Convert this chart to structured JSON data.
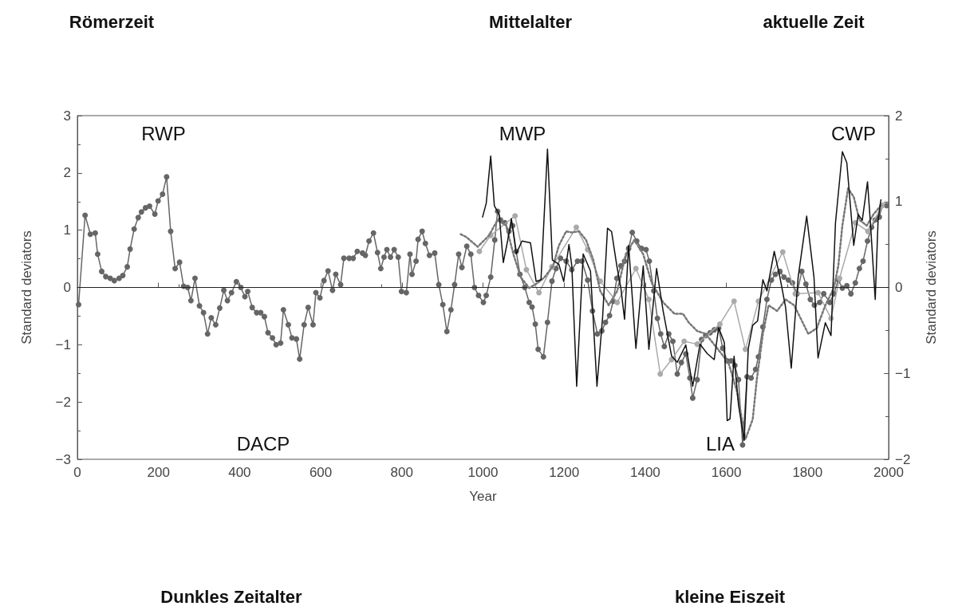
{
  "chart_data": {
    "type": "line",
    "xlabel": "Year",
    "ylabel": "Standard deviators",
    "y2label": "Standard deviators",
    "xlim": [
      0,
      2000
    ],
    "xticks": [
      0,
      200,
      400,
      600,
      800,
      1000,
      1200,
      1400,
      1600,
      1800,
      2000
    ],
    "ylim": [
      -3,
      3
    ],
    "yticks": [
      -3,
      -2,
      -1,
      0,
      1,
      2,
      3
    ],
    "y2lim": [
      -2,
      2
    ],
    "y2ticks": [
      -2,
      -1,
      0,
      1,
      2
    ],
    "grid": false,
    "ref_lines": [
      {
        "axis": "y",
        "value": 0,
        "color": "#222222"
      }
    ],
    "annotations": [
      "Römerzeit",
      "Mittelalter",
      "aktuelle Zeit",
      "Dunkles Zeitalter",
      "kleine Eiszeit",
      "RWP",
      "MWP",
      "CWP",
      "DACP",
      "LIA"
    ],
    "series": [
      {
        "color": "#666666",
        "marker": "circle",
        "line_style": "solid",
        "x": [
          3,
          19,
          32,
          44,
          50,
          60,
          70,
          81,
          91,
          103,
          112,
          123,
          130,
          140,
          150,
          158,
          168,
          178,
          191,
          199,
          210,
          220,
          230,
          241,
          252,
          262,
          272,
          280,
          290,
          301,
          311,
          321,
          330,
          341,
          351,
          361,
          370,
          380,
          392,
          403,
          413,
          420,
          431,
          442,
          452,
          461,
          470,
          481,
          490,
          501,
          508,
          520,
          529,
          540,
          548,
          559,
          569,
          581,
          588,
          598,
          608,
          618,
          629,
          637,
          649,
          657,
          670,
          680,
          690,
          703,
          710,
          719,
          730,
          740,
          748,
          756,
          763,
          772,
          781,
          791,
          799,
          811,
          820,
          825,
          835,
          840,
          850,
          858,
          868,
          881,
          891,
          901,
          911,
          921,
          930,
          940,
          948,
          960,
          970,
          979,
          989,
          1001,
          1008,
          1019,
          1029,
          1036,
          1043,
          1054,
          1064,
          1073,
          1082,
          1091,
          1103,
          1114,
          1121,
          1129,
          1136,
          1149,
          1159,
          1170,
          1180,
          1191,
          1205,
          1219,
          1233,
          1244,
          1258,
          1270,
          1282,
          1293,
          1302,
          1312,
          1321,
          1330,
          1340,
          1349,
          1359,
          1368,
          1379,
          1391,
          1402,
          1410,
          1421,
          1430,
          1438,
          1447,
          1458,
          1468,
          1479,
          1489,
          1500,
          1510,
          1517,
          1528,
          1539,
          1549,
          1560,
          1570,
          1581,
          1591,
          1602,
          1612,
          1621,
          1630,
          1640,
          1651,
          1661,
          1672,
          1679,
          1690,
          1700,
          1711,
          1721,
          1732,
          1742,
          1753,
          1763,
          1774,
          1786,
          1796,
          1807,
          1817,
          1830,
          1840,
          1855,
          1865,
          1876,
          1886,
          1897,
          1907,
          1918,
          1928,
          1937,
          1948,
          1958,
          1967,
          1977,
          1984,
          1995
        ],
        "values": [
          -0.3,
          1.26,
          0.93,
          0.95,
          0.58,
          0.28,
          0.19,
          0.16,
          0.12,
          0.16,
          0.21,
          0.36,
          0.67,
          1.02,
          1.22,
          1.32,
          1.39,
          1.42,
          1.28,
          1.51,
          1.63,
          1.93,
          0.98,
          0.33,
          0.44,
          0.02,
          0.0,
          -0.23,
          0.16,
          -0.32,
          -0.44,
          -0.81,
          -0.53,
          -0.65,
          -0.36,
          -0.05,
          -0.23,
          -0.09,
          0.1,
          0.0,
          -0.16,
          -0.07,
          -0.35,
          -0.44,
          -0.44,
          -0.51,
          -0.79,
          -0.88,
          -1.0,
          -0.97,
          -0.39,
          -0.65,
          -0.88,
          -0.9,
          -1.25,
          -0.65,
          -0.35,
          -0.65,
          -0.09,
          -0.18,
          0.12,
          0.29,
          -0.05,
          0.23,
          0.05,
          0.51,
          0.51,
          0.51,
          0.63,
          0.6,
          0.56,
          0.81,
          0.95,
          0.61,
          0.33,
          0.53,
          0.66,
          0.53,
          0.66,
          0.53,
          -0.07,
          -0.09,
          0.58,
          0.23,
          0.46,
          0.84,
          0.98,
          0.77,
          0.56,
          0.6,
          0.05,
          -0.3,
          -0.77,
          -0.39,
          0.05,
          0.58,
          0.35,
          0.72,
          0.58,
          0.0,
          -0.14,
          -0.26,
          -0.14,
          0.18,
          0.83,
          1.33,
          1.18,
          1.13,
          0.98,
          1.08,
          0.63,
          0.23,
          0.0,
          -0.26,
          -0.34,
          -0.64,
          -1.08,
          -1.21,
          -0.61,
          0.11,
          0.33,
          0.51,
          0.46,
          0.31,
          0.46,
          0.46,
          0.13,
          -0.41,
          -0.81,
          -0.76,
          -0.61,
          -0.49,
          -0.24,
          0.16,
          0.38,
          0.46,
          0.68,
          0.96,
          0.81,
          0.68,
          0.66,
          0.46,
          -0.06,
          -0.54,
          -0.81,
          -1.03,
          -0.81,
          -0.94,
          -1.51,
          -1.31,
          -1.16,
          -1.58,
          -1.93,
          -1.61,
          -0.91,
          -0.84,
          -0.79,
          -0.74,
          -0.71,
          -1.06,
          -1.28,
          -1.28,
          -1.36,
          -1.61,
          -2.75,
          -1.56,
          -1.58,
          -1.43,
          -1.21,
          -0.69,
          -0.21,
          0.13,
          0.23,
          0.28,
          0.18,
          0.13,
          0.08,
          -0.11,
          0.28,
          0.06,
          -0.21,
          -0.31,
          -0.26,
          -0.11,
          -0.26,
          -0.11,
          0.13,
          -0.01,
          0.03,
          -0.11,
          0.08,
          0.33,
          0.46,
          0.81,
          1.05,
          1.18,
          1.23,
          1.43,
          1.43
        ]
      },
      {
        "color": "#aaaaaa",
        "marker": "circle",
        "line_style": "solid",
        "x": [
          991,
          1019,
          1079,
          1107,
          1138,
          1170,
          1230,
          1258,
          1289,
          1331,
          1377,
          1409,
          1437,
          1465,
          1496,
          1528,
          1584,
          1619,
          1647,
          1679,
          1739,
          1770,
          1826,
          1858,
          1879,
          1918,
          1949,
          1984
        ],
        "values": [
          0.63,
          0.91,
          1.25,
          0.31,
          -0.09,
          0.36,
          1.05,
          0.66,
          0.11,
          -0.26,
          0.33,
          -0.21,
          -1.51,
          -1.26,
          -0.94,
          -0.99,
          -0.64,
          -0.24,
          -1.08,
          -0.24,
          0.62,
          -0.11,
          -0.09,
          -0.54,
          0.16,
          1.13,
          0.98,
          1.43
        ]
      },
      {
        "color": "#777777",
        "marker": "none",
        "line_style": "dotted",
        "x": [
          945,
          959,
          987,
          1015,
          1036,
          1057,
          1075,
          1093,
          1114,
          1135,
          1152,
          1173,
          1187,
          1205,
          1219,
          1237,
          1254,
          1272,
          1289,
          1310,
          1331,
          1352,
          1373,
          1395,
          1416,
          1444,
          1472,
          1493,
          1507,
          1528,
          1549,
          1577,
          1605,
          1626,
          1647,
          1665,
          1675,
          1690,
          1704,
          1725,
          1746,
          1767,
          1788,
          1802,
          1823,
          1844,
          1865,
          1876,
          1886,
          1900,
          1914,
          1928,
          1946,
          1963,
          1981
        ],
        "values": [
          0.93,
          0.88,
          0.71,
          0.91,
          1.18,
          1.08,
          0.58,
          0.18,
          -0.01,
          0.08,
          0.18,
          0.38,
          0.73,
          0.98,
          0.96,
          0.98,
          0.83,
          0.48,
          -0.06,
          -0.31,
          -0.06,
          0.58,
          0.83,
          0.58,
          0.08,
          -0.26,
          -0.46,
          -0.46,
          -0.61,
          -0.76,
          -0.81,
          -1.06,
          -1.31,
          -1.81,
          -2.65,
          -2.3,
          -1.61,
          -0.81,
          -0.31,
          -0.41,
          -0.21,
          -0.31,
          -0.61,
          -0.81,
          -0.71,
          -0.31,
          -0.01,
          0.38,
          1.08,
          1.73,
          1.58,
          1.18,
          1.08,
          1.28,
          1.43
        ]
      },
      {
        "color": "#111111",
        "marker": "none",
        "line_style": "solid",
        "axis": "y2",
        "x": [
          999,
          1008,
          1019,
          1028,
          1040,
          1050,
          1061,
          1070,
          1082,
          1096,
          1117,
          1131,
          1143,
          1159,
          1171,
          1187,
          1199,
          1212,
          1219,
          1231,
          1247,
          1265,
          1281,
          1295,
          1307,
          1317,
          1330,
          1340,
          1349,
          1359,
          1377,
          1395,
          1409,
          1428,
          1444,
          1465,
          1479,
          1500,
          1517,
          1535,
          1553,
          1570,
          1581,
          1595,
          1602,
          1609,
          1619,
          1630,
          1644,
          1654,
          1665,
          1677,
          1690,
          1700,
          1718,
          1732,
          1746,
          1760,
          1777,
          1798,
          1816,
          1826,
          1844,
          1858,
          1869,
          1886,
          1897,
          1914,
          1925,
          1935,
          1948,
          1956,
          1967,
          1974,
          1981
        ],
        "values": [
          0.82,
          0.98,
          1.53,
          0.95,
          0.85,
          0.29,
          0.55,
          0.8,
          0.39,
          0.54,
          0.52,
          0.07,
          0.09,
          1.61,
          0.32,
          0.27,
          0.07,
          0.5,
          0.25,
          -1.15,
          0.39,
          0.19,
          -1.15,
          -0.34,
          0.69,
          0.65,
          0.25,
          -0.01,
          -0.37,
          0.49,
          -0.71,
          0.25,
          -0.72,
          0.22,
          -0.27,
          -0.8,
          -0.87,
          -0.67,
          -1.15,
          -0.66,
          -0.77,
          -0.84,
          -0.47,
          -0.64,
          -1.55,
          -1.53,
          -0.8,
          -1.37,
          -1.78,
          -0.71,
          -0.44,
          -0.39,
          0.09,
          -0.04,
          0.42,
          0.12,
          -0.23,
          -0.94,
          0.12,
          0.83,
          0.12,
          -0.82,
          -0.41,
          -0.56,
          0.75,
          1.58,
          1.45,
          0.49,
          0.85,
          0.78,
          1.23,
          0.69,
          -0.14,
          0.78,
          1.02
        ]
      }
    ]
  }
}
